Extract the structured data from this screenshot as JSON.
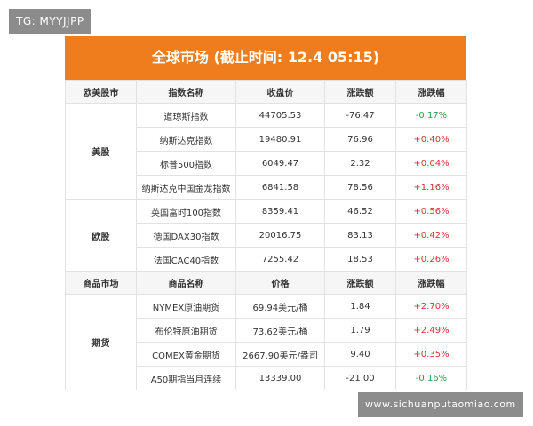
{
  "watermark_top": "TG: MYYJJPP",
  "header": {
    "title": "全球市场 (截止时间: 12.4 05:15)"
  },
  "sections": [
    {
      "columns": [
        "欧美股市",
        "指数名称",
        "收盘价",
        "涨跌额",
        "涨跌幅"
      ],
      "groups": [
        {
          "label": "美股",
          "rows": [
            [
              "道琼斯指数",
              "44705.53",
              "-76.47",
              "-0.17%"
            ],
            [
              "纳斯达克指数",
              "19480.91",
              "76.96",
              "+0.40%"
            ],
            [
              "标普500指数",
              "6049.47",
              "2.32",
              "+0.04%"
            ],
            [
              "纳斯达克中国金龙指数",
              "6841.58",
              "78.56",
              "+1.16%"
            ]
          ]
        },
        {
          "label": "欧股",
          "rows": [
            [
              "英国富时100指数",
              "8359.41",
              "46.52",
              "+0.56%"
            ],
            [
              "德国DAX30指数",
              "20016.75",
              "83.13",
              "+0.42%"
            ],
            [
              "法国CAC40指数",
              "7255.42",
              "18.53",
              "+0.26%"
            ]
          ]
        }
      ]
    },
    {
      "columns": [
        "商品市场",
        "商品名称",
        "价格",
        "涨跌额",
        "涨跌幅"
      ],
      "groups": [
        {
          "label": "期货",
          "rows": [
            [
              "NYMEX原油期货",
              "69.94美元/桶",
              "1.84",
              "+2.70%"
            ],
            [
              "布伦特原油期货",
              "73.62美元/桶",
              "1.79",
              "+2.49%"
            ],
            [
              "COMEX黄金期货",
              "2667.90美元/盎司",
              "9.40",
              "+0.35%"
            ],
            [
              "A50期指当月连续",
              "13339.00",
              "-21.00",
              "-0.16%"
            ]
          ]
        }
      ]
    }
  ],
  "watermark_bottom": "www.sichuanputaomiao.com"
}
